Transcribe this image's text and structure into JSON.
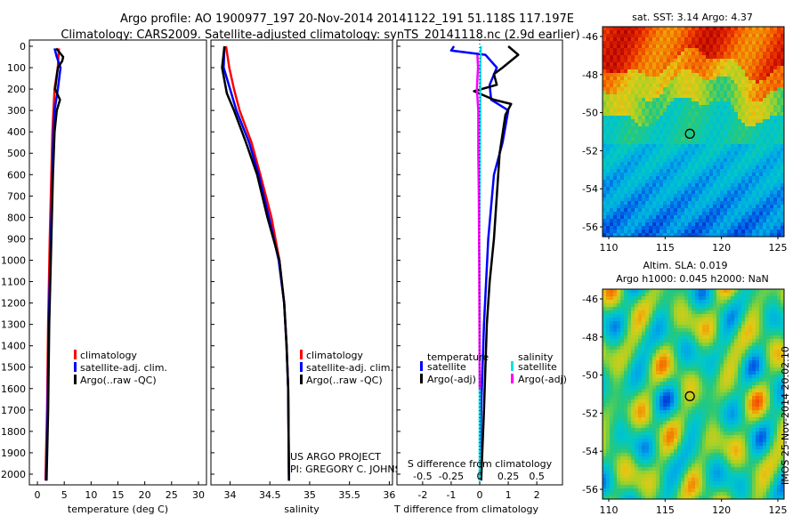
{
  "header": {
    "line1": "Argo profile: AO 1900977_197 20-Nov-2014 20141122_191 51.118S 117.197E",
    "line2": "Climatology: CARS2009. Satellite-adjusted climatology: synTS_20141118.nc (2.9d earlier)"
  },
  "colors": {
    "climatology": "#ff0000",
    "satellite": "#0000ff",
    "argo": "#000000",
    "sat_salinity": "#00e5e5",
    "argo_salinity": "#ff00ff"
  },
  "chart_data": [
    {
      "type": "line",
      "name": "temperature-profile",
      "xlabel": "temperature (deg C)",
      "x_ticks": [
        0,
        5,
        10,
        15,
        20,
        25,
        30
      ],
      "xlim": [
        -1.5,
        31.5
      ],
      "ylim": [
        0,
        2050
      ],
      "y_ticks": [
        0,
        100,
        200,
        300,
        400,
        500,
        600,
        700,
        800,
        900,
        1000,
        1100,
        1200,
        1300,
        1400,
        1500,
        1600,
        1700,
        1800,
        1900,
        2000
      ],
      "legend": [
        "climatology",
        "satellite-adj. clim.",
        "Argo(..raw -QC)"
      ],
      "series": [
        {
          "name": "climatology",
          "color": "#ff0000",
          "points": [
            [
              4.0,
              10
            ],
            [
              3.8,
              100
            ],
            [
              3.2,
              200
            ],
            [
              3.0,
              300
            ],
            [
              2.8,
              400
            ],
            [
              2.6,
              600
            ],
            [
              2.3,
              900
            ],
            [
              2.0,
              1300
            ],
            [
              1.8,
              1700
            ],
            [
              1.5,
              2030
            ]
          ]
        },
        {
          "name": "satellite-adj. clim.",
          "color": "#0000ff",
          "points": [
            [
              3.2,
              10
            ],
            [
              3.6,
              50
            ],
            [
              4.3,
              100
            ],
            [
              3.8,
              200
            ],
            [
              3.2,
              300
            ],
            [
              3.0,
              400
            ],
            [
              2.8,
              600
            ],
            [
              2.5,
              900
            ],
            [
              2.1,
              1300
            ],
            [
              1.9,
              1700
            ],
            [
              1.6,
              2030
            ]
          ]
        },
        {
          "name": "Argo(..raw -QC)",
          "color": "#000000",
          "points": [
            [
              3.5,
              10
            ],
            [
              4.8,
              50
            ],
            [
              4.6,
              70
            ],
            [
              3.8,
              100
            ],
            [
              3.3,
              200
            ],
            [
              4.2,
              250
            ],
            [
              3.6,
              300
            ],
            [
              3.2,
              400
            ],
            [
              2.9,
              600
            ],
            [
              2.6,
              900
            ],
            [
              2.2,
              1300
            ],
            [
              2.0,
              1700
            ],
            [
              1.7,
              2030
            ]
          ]
        }
      ]
    },
    {
      "type": "line",
      "name": "salinity-profile",
      "xlabel": "salinity",
      "x_ticks": [
        34,
        34.5,
        35,
        35.5,
        36
      ],
      "xlim": [
        33.76,
        36.04
      ],
      "ylim": [
        0,
        2050
      ],
      "legend": [
        "climatology",
        "satellite-adj. clim.",
        "Argo(..raw -QC)"
      ],
      "annotations": [
        "US ARGO PROJECT",
        "PI: GREGORY C. JOHNSON"
      ],
      "series": [
        {
          "name": "climatology",
          "color": "#ff0000",
          "points": [
            [
              33.95,
              0
            ],
            [
              33.99,
              100
            ],
            [
              34.05,
              200
            ],
            [
              34.12,
              300
            ],
            [
              34.27,
              450
            ],
            [
              34.38,
              600
            ],
            [
              34.52,
              800
            ],
            [
              34.62,
              1000
            ],
            [
              34.68,
              1200
            ],
            [
              34.71,
              1400
            ],
            [
              34.73,
              1600
            ],
            [
              34.74,
              2030
            ]
          ]
        },
        {
          "name": "satellite-adj. clim.",
          "color": "#0000ff",
          "points": [
            [
              33.93,
              0
            ],
            [
              33.92,
              100
            ],
            [
              34.0,
              200
            ],
            [
              34.08,
              300
            ],
            [
              34.24,
              450
            ],
            [
              34.36,
              600
            ],
            [
              34.49,
              800
            ],
            [
              34.61,
              1000
            ],
            [
              34.68,
              1200
            ],
            [
              34.71,
              1400
            ],
            [
              34.73,
              1600
            ],
            [
              34.74,
              2030
            ]
          ]
        },
        {
          "name": "Argo(..raw -QC)",
          "color": "#000000",
          "points": [
            [
              33.93,
              0
            ],
            [
              33.9,
              100
            ],
            [
              33.96,
              220
            ],
            [
              34.05,
              300
            ],
            [
              34.2,
              450
            ],
            [
              34.34,
              600
            ],
            [
              34.47,
              800
            ],
            [
              34.62,
              1000
            ],
            [
              34.68,
              1200
            ],
            [
              34.71,
              1400
            ],
            [
              34.73,
              1600
            ],
            [
              34.74,
              2030
            ]
          ]
        }
      ]
    },
    {
      "type": "line",
      "name": "difference-profile",
      "xlabel": "T difference from climatology",
      "x2label": "S difference from climatology",
      "x_ticks": [
        -2,
        -1,
        0,
        1,
        2
      ],
      "x_top_ticks": [
        "-0.5",
        "-0.25",
        "0",
        "0.25",
        "0.5"
      ],
      "xlim": [
        -2.9,
        2.9
      ],
      "ylim": [
        0,
        2050
      ],
      "legend_temperature_title": "temperature",
      "legend_salinity_title": "salinity",
      "legend_temperature": [
        "satellite",
        "Argo(-adj)"
      ],
      "legend_salinity": [
        "satellite",
        "Argo(-adj)"
      ],
      "series": [
        {
          "name": "satellite",
          "color": "#0000ff",
          "points": [
            [
              -0.9,
              0
            ],
            [
              -1.0,
              20
            ],
            [
              0.2,
              40
            ],
            [
              0.6,
              100
            ],
            [
              0.35,
              180
            ],
            [
              0.4,
              250
            ],
            [
              1.0,
              300
            ],
            [
              0.8,
              450
            ],
            [
              0.5,
              600
            ],
            [
              0.3,
              900
            ],
            [
              0.15,
              1300
            ],
            [
              0.05,
              1700
            ],
            [
              0.0,
              2030
            ]
          ]
        },
        {
          "name": "Argo(-adj)",
          "color": "#000000",
          "points": [
            [
              1.0,
              0
            ],
            [
              1.35,
              40
            ],
            [
              0.8,
              100
            ],
            [
              0.5,
              130
            ],
            [
              0.6,
              180
            ],
            [
              -0.2,
              210
            ],
            [
              0.5,
              250
            ],
            [
              1.1,
              270
            ],
            [
              0.9,
              320
            ],
            [
              0.7,
              500
            ],
            [
              0.6,
              700
            ],
            [
              0.5,
              900
            ],
            [
              0.35,
              1100
            ],
            [
              0.25,
              1300
            ],
            [
              0.15,
              1700
            ],
            [
              0.05,
              2030
            ]
          ]
        },
        {
          "name": "satellite",
          "color": "#00e5e5",
          "points": [
            [
              0.04,
              0
            ],
            [
              0.02,
              100
            ],
            [
              0.02,
              300
            ],
            [
              0.0,
              600
            ],
            [
              -0.02,
              900
            ],
            [
              0.0,
              1200
            ],
            [
              0.0,
              1600
            ],
            [
              0.0,
              2030
            ]
          ]
        },
        {
          "name": "Argo(-adj)",
          "color": "#ff00ff",
          "points": [
            [
              -0.08,
              40
            ],
            [
              -0.06,
              100
            ],
            [
              -0.1,
              200
            ],
            [
              -0.05,
              300
            ],
            [
              -0.05,
              500
            ],
            [
              -0.03,
              700
            ],
            [
              -0.02,
              1000
            ],
            [
              -0.01,
              1300
            ],
            [
              0.0,
              1600
            ]
          ]
        }
      ]
    }
  ],
  "maps": {
    "sst": {
      "title": "sat. SST: 3.14 Argo: 4.37",
      "lat_ticks": [
        "-46",
        "-48",
        "-50",
        "-52",
        "-54",
        "-56"
      ],
      "lon_ticks": [
        "110",
        "115",
        "120",
        "125"
      ],
      "marker": {
        "lon": 117.197,
        "lat": -51.118
      }
    },
    "sla": {
      "title": "Altim. SLA: 0.019",
      "subtitle": "Argo h1000: 0.045 h2000: NaN",
      "lat_ticks": [
        "-46",
        "-48",
        "-50",
        "-52",
        "-54",
        "-56"
      ],
      "lon_ticks": [
        "110",
        "115",
        "120",
        "125"
      ],
      "marker": {
        "lon": 117.197,
        "lat": -51.118
      }
    }
  },
  "footer": {
    "side_label": "IMOS 25-Nov-2014 20:02:10"
  }
}
